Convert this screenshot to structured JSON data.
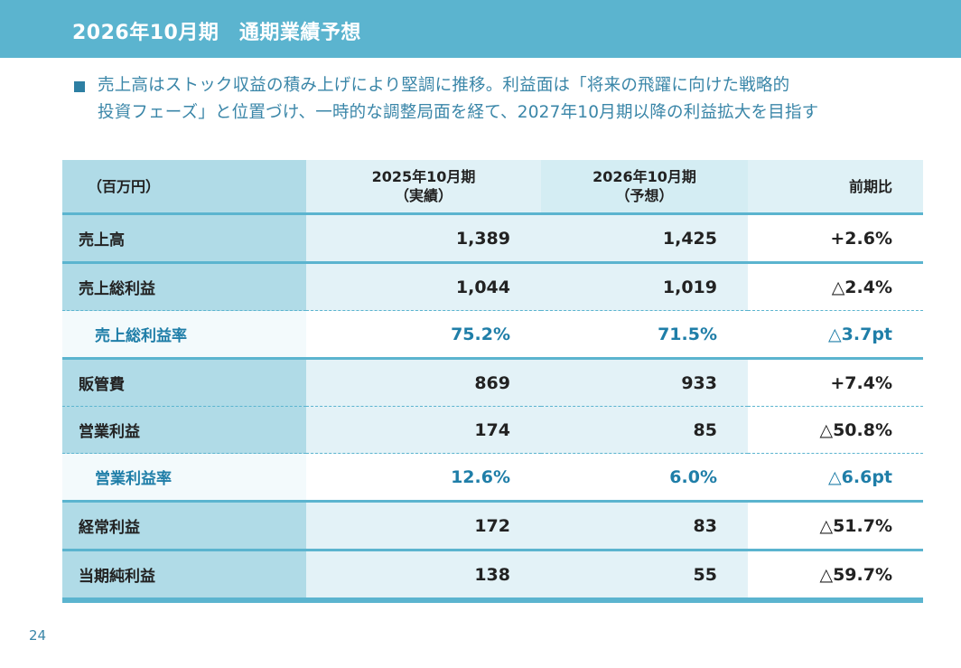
{
  "header": {
    "title": "2026年10月期　通期業績予想"
  },
  "summary": {
    "line1": "売上高はストック収益の積み上げにより堅調に推移。利益面は「将来の飛躍に向けた戦略的",
    "line2": "投資フェーズ」と位置づけ、一時的な調整局面を経て、2027年10月期以降の利益拡大を目指す"
  },
  "table": {
    "unit_label": "（百万円）",
    "columns": [
      {
        "line1": "2025年10月期",
        "line2": "（実績）"
      },
      {
        "line1": "2026年10月期",
        "line2": "（予想）"
      },
      {
        "line1": "前期比"
      }
    ],
    "rows": [
      {
        "label": "売上高",
        "prev": "1,389",
        "cur": "1,425",
        "ratio": "+2.6%"
      },
      {
        "label": "売上総利益",
        "prev": "1,044",
        "cur": "1,019",
        "ratio": "△2.4%"
      },
      {
        "label": "売上総利益率",
        "prev": "75.2%",
        "cur": "71.5%",
        "ratio": "△3.7pt"
      },
      {
        "label": "販管費",
        "prev": "869",
        "cur": "933",
        "ratio": "+7.4%"
      },
      {
        "label": "営業利益",
        "prev": "174",
        "cur": "85",
        "ratio": "△50.8%"
      },
      {
        "label": "営業利益率",
        "prev": "12.6%",
        "cur": "6.0%",
        "ratio": "△6.6pt"
      },
      {
        "label": "経常利益",
        "prev": "172",
        "cur": "83",
        "ratio": "△51.7%"
      },
      {
        "label": "当期純利益",
        "prev": "138",
        "cur": "55",
        "ratio": "△59.7%"
      }
    ]
  },
  "page_number": "24",
  "colors": {
    "header_bg": "#5bb4cf",
    "accent_text": "#1f7ea8",
    "bullet": "#2d7fa3"
  }
}
